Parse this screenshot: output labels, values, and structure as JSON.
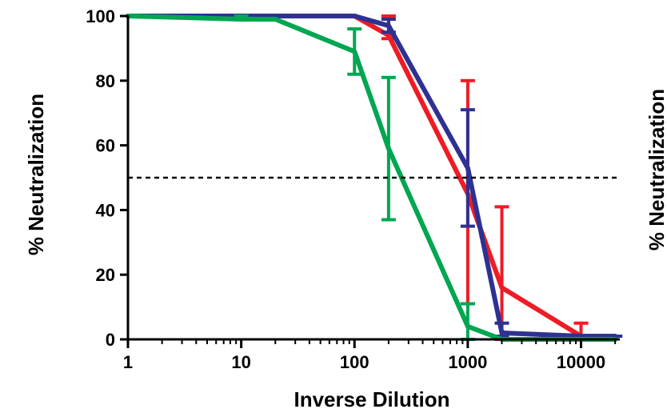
{
  "chart_data": {
    "type": "line",
    "xlabel": "Inverse Dilution",
    "ylabel": "% Neutralization",
    "ylabel_right": "% Neutralization",
    "x_scale": "log",
    "xlim": [
      1,
      22000
    ],
    "ylim": [
      0,
      100
    ],
    "x_ticks": [
      1,
      10,
      100,
      1000,
      10000
    ],
    "x_tick_labels": [
      "1",
      "10",
      "100",
      "1000",
      "10000"
    ],
    "y_ticks": [
      0,
      20,
      40,
      60,
      80,
      100
    ],
    "y_tick_labels": [
      "0",
      "20",
      "40",
      "60",
      "80",
      "100"
    ],
    "reference_line": {
      "y": 50,
      "style": "dashed",
      "color": "#000000"
    },
    "grid": false,
    "legend": "none",
    "series": [
      {
        "color": "#ee1c25",
        "x": [
          1,
          10,
          20,
          100,
          200,
          1000,
          2000,
          10000,
          20000
        ],
        "y": [
          100,
          100,
          100,
          100,
          94,
          45,
          16,
          1,
          0
        ],
        "error_x": [
          200,
          1000,
          2000,
          10000
        ],
        "error_low": [
          93,
          11,
          0,
          0
        ],
        "error_high": [
          100,
          80,
          41,
          5
        ]
      },
      {
        "color": "#2e3192",
        "x": [
          1,
          10,
          20,
          100,
          200,
          1000,
          2000,
          10000,
          20000
        ],
        "y": [
          100,
          100,
          100,
          100,
          97,
          53,
          2,
          1,
          1
        ],
        "error_x": [
          200,
          1000,
          2000,
          20000
        ],
        "error_low": [
          95,
          35,
          1,
          1
        ],
        "error_high": [
          99,
          71,
          5,
          1
        ]
      },
      {
        "color": "#00a651",
        "x": [
          1,
          10,
          20,
          100,
          200,
          1000,
          2000,
          10000,
          20000
        ],
        "y": [
          100,
          99,
          99,
          89,
          59,
          4,
          0,
          0,
          0
        ],
        "error_x": [
          10,
          100,
          200,
          1000
        ],
        "error_low": [
          99,
          82,
          37,
          0
        ],
        "error_high": [
          100,
          96,
          81,
          11
        ]
      }
    ]
  }
}
